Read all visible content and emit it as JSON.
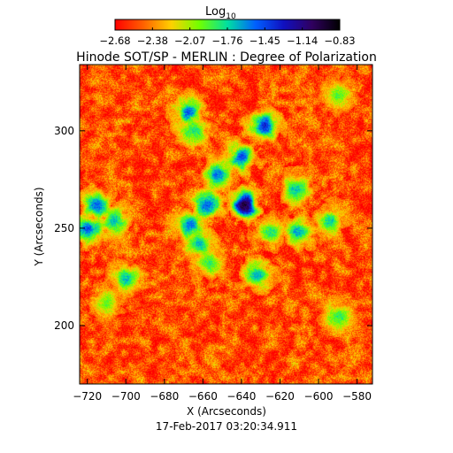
{
  "figure": {
    "title": "Hinode SOT/SP - MERLIN : Degree of Polarization",
    "timestamp": "17-Feb-2017 03:20:34.911"
  },
  "colorbar": {
    "label": "Log",
    "label_subscript": "10",
    "ticks": [
      "-2.68",
      "-2.38",
      "-2.07",
      "-1.76",
      "-1.45",
      "-1.14",
      "-0.83"
    ],
    "range": [
      -2.68,
      -0.83
    ],
    "colormap": [
      "#ff0000",
      "#ff6000",
      "#ffd000",
      "#70ff00",
      "#00e0a0",
      "#0060ff",
      "#1010c0",
      "#300060",
      "#000000"
    ]
  },
  "map": {
    "xlabel": "X (Arcseconds)",
    "ylabel": "Y (Arcseconds)",
    "xlim": [
      -724,
      -572
    ],
    "ylim": [
      170,
      334
    ],
    "xticks": [
      -720,
      -700,
      -680,
      -660,
      -640,
      -620,
      -600,
      -580
    ],
    "yticks": [
      200,
      250,
      300
    ],
    "xtick_labels": [
      "−720",
      "−700",
      "−680",
      "−660",
      "−640",
      "−620",
      "−600",
      "−580"
    ],
    "ytick_labels": [
      "200",
      "250",
      "300"
    ],
    "background_level": -2.5,
    "features": [
      {
        "x": -639,
        "y": 262,
        "level": -0.95
      },
      {
        "x": -628,
        "y": 303,
        "level": -1.35
      },
      {
        "x": -640,
        "y": 287,
        "level": -1.45
      },
      {
        "x": -653,
        "y": 278,
        "level": -1.55
      },
      {
        "x": -658,
        "y": 262,
        "level": -1.5
      },
      {
        "x": -667,
        "y": 252,
        "level": -1.55
      },
      {
        "x": -715,
        "y": 262,
        "level": -1.5
      },
      {
        "x": -720,
        "y": 250,
        "level": -1.45
      },
      {
        "x": -706,
        "y": 254,
        "level": -1.7
      },
      {
        "x": -611,
        "y": 248,
        "level": -1.65
      },
      {
        "x": -625,
        "y": 248,
        "level": -1.8
      },
      {
        "x": -632,
        "y": 226,
        "level": -1.65
      },
      {
        "x": -662,
        "y": 242,
        "level": -1.7
      },
      {
        "x": -668,
        "y": 310,
        "level": -1.5
      },
      {
        "x": -665,
        "y": 300,
        "level": -1.8
      },
      {
        "x": -700,
        "y": 224,
        "level": -1.7
      },
      {
        "x": -612,
        "y": 270,
        "level": -1.7
      },
      {
        "x": -590,
        "y": 318,
        "level": -1.9
      },
      {
        "x": -590,
        "y": 205,
        "level": -1.85
      },
      {
        "x": -594,
        "y": 254,
        "level": -1.75
      },
      {
        "x": -657,
        "y": 232,
        "level": -1.85
      },
      {
        "x": -710,
        "y": 212,
        "level": -1.95
      }
    ]
  }
}
